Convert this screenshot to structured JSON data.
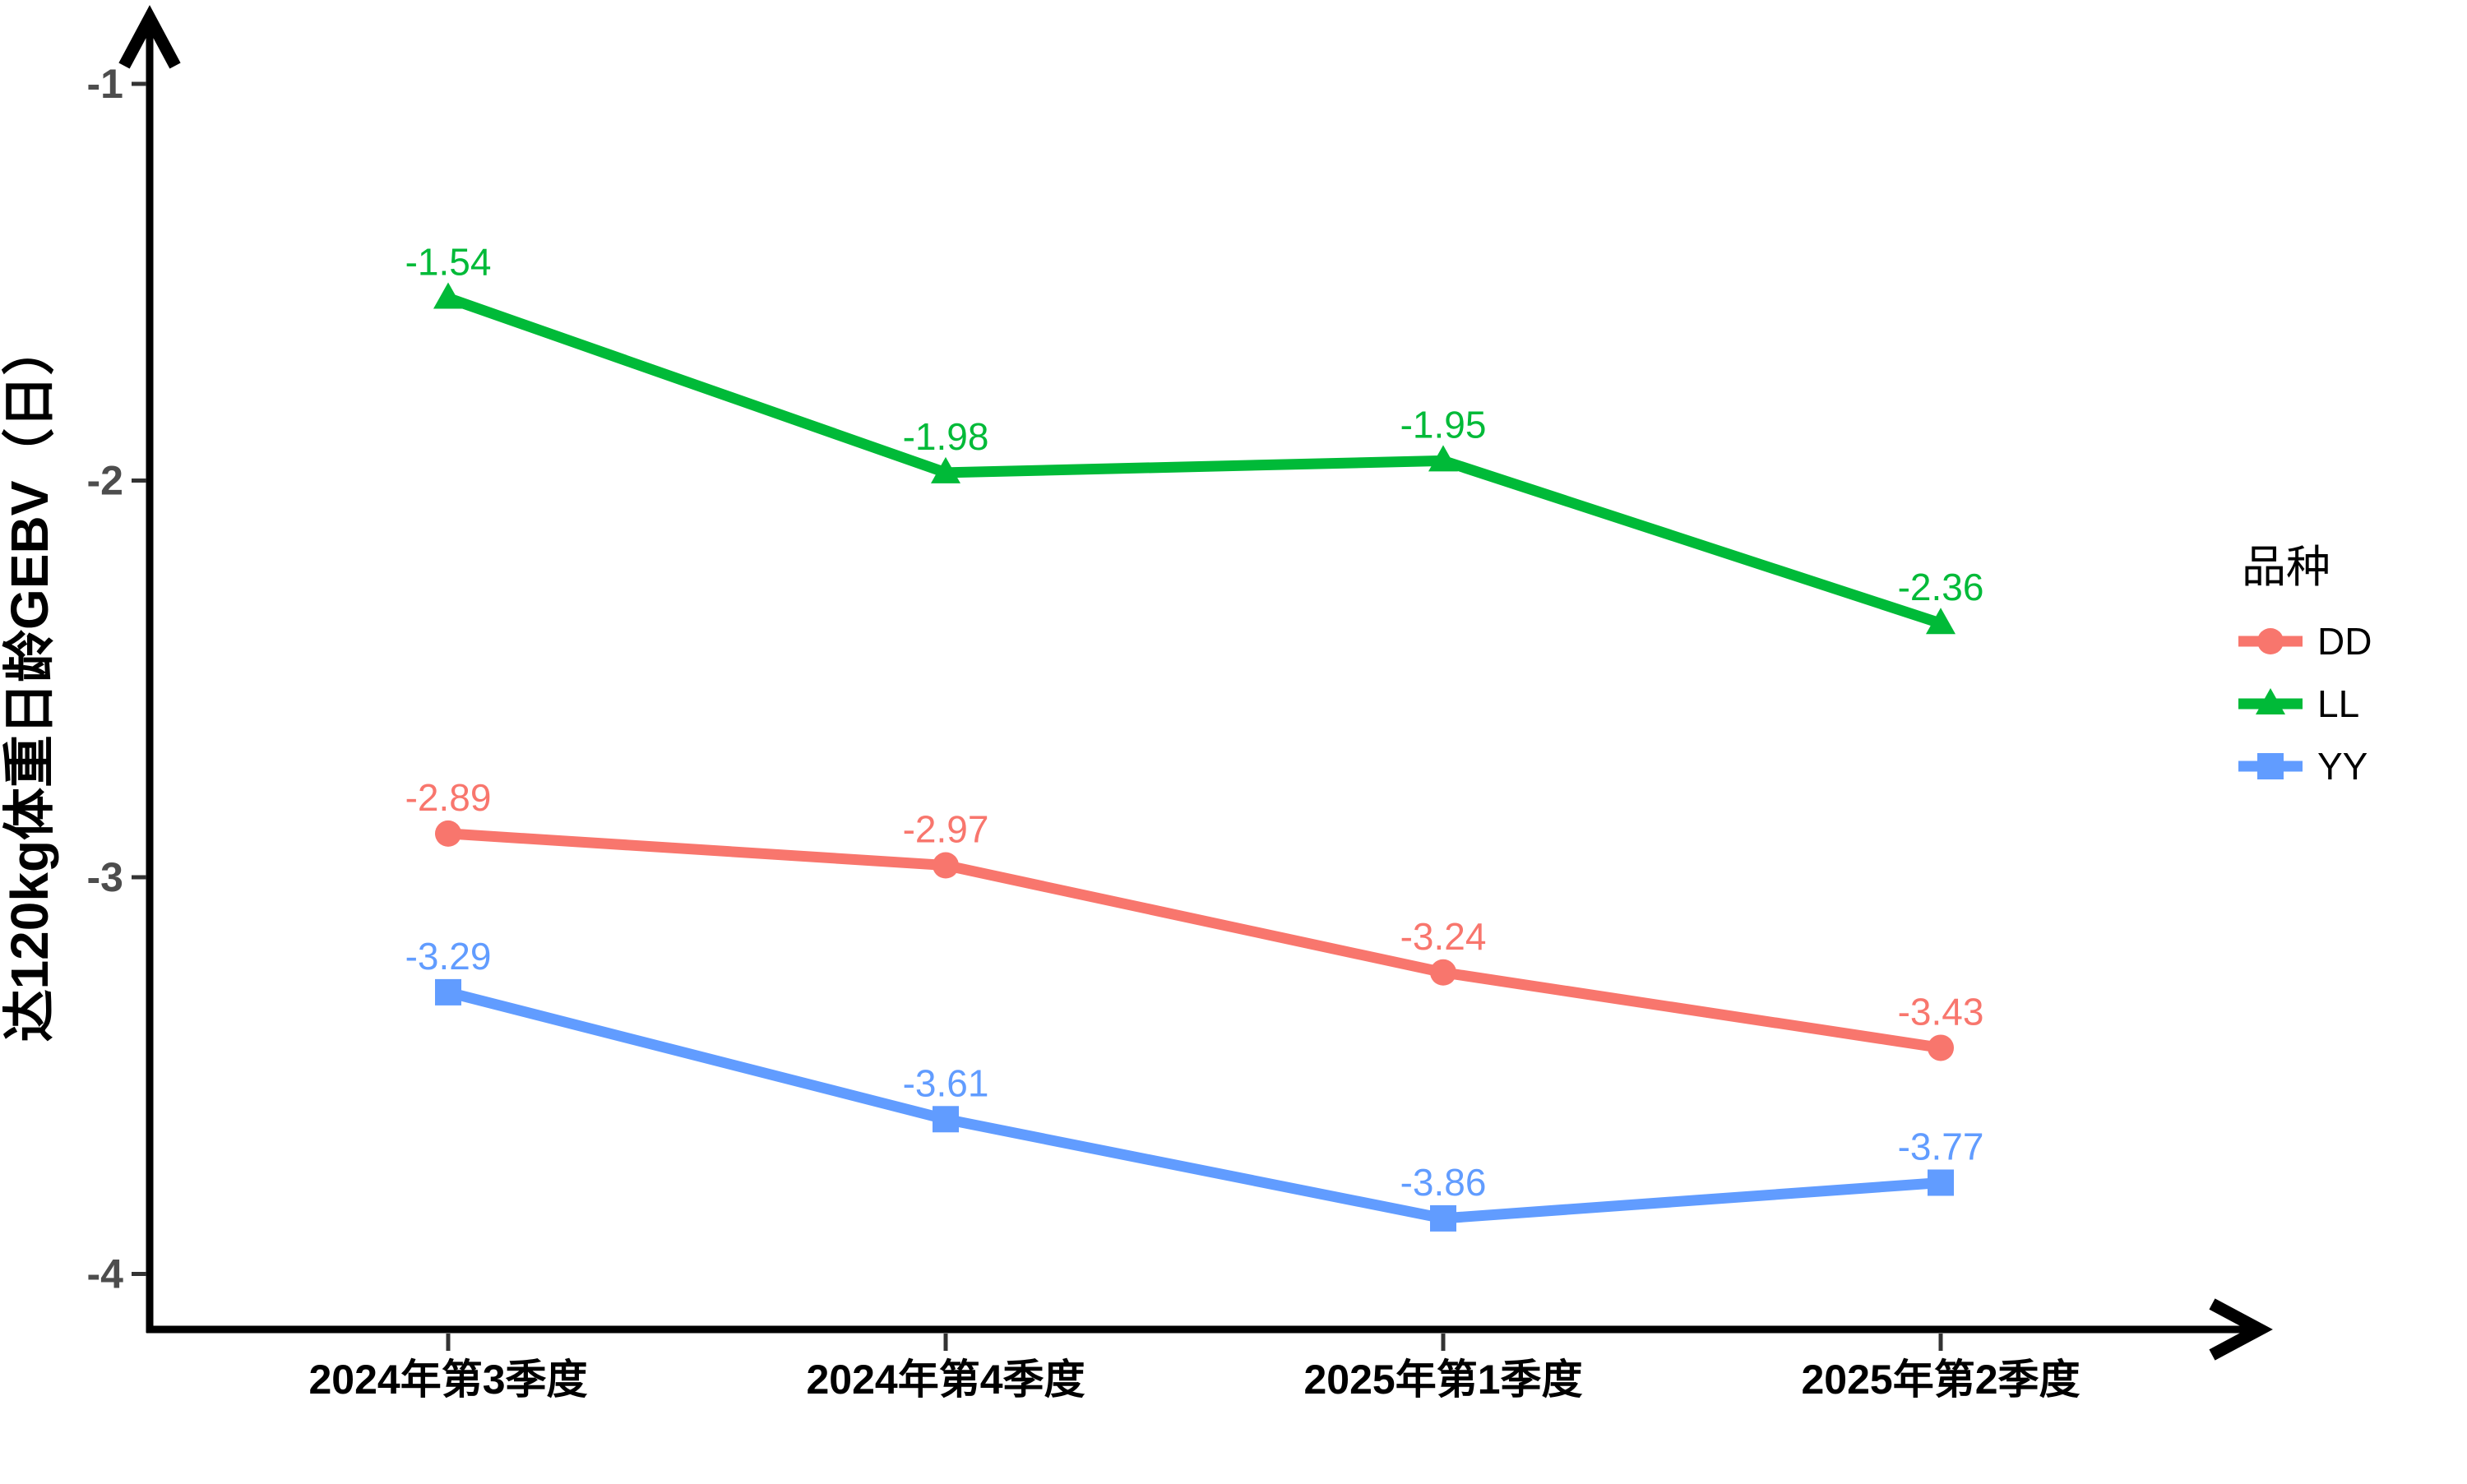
{
  "chart_data": {
    "type": "line",
    "categories": [
      "2024年第3季度",
      "2024年第4季度",
      "2025年第1季度",
      "2025年第2季度"
    ],
    "series": [
      {
        "name": "DD",
        "color": "#F8766D",
        "marker": "circle",
        "values": [
          -2.89,
          -2.97,
          -3.24,
          -3.43
        ],
        "labels": [
          "-2.89",
          "-2.97",
          "-3.24",
          "-3.43"
        ]
      },
      {
        "name": "LL",
        "color": "#00BA38",
        "marker": "triangle",
        "values": [
          -1.54,
          -1.98,
          -1.95,
          -2.36
        ],
        "labels": [
          "-1.54",
          "-1.98",
          "-1.95",
          "-2.36"
        ]
      },
      {
        "name": "YY",
        "color": "#619CFF",
        "marker": "square",
        "values": [
          -3.29,
          -3.61,
          -3.86,
          -3.77
        ],
        "labels": [
          "-3.29",
          "-3.61",
          "-3.86",
          "-3.77"
        ]
      }
    ],
    "title": "",
    "xlabel": "",
    "ylabel": "达120kg体重日龄GEBV（日）",
    "ylim": [
      -4.14,
      -0.83
    ],
    "yticks": [
      -1,
      -2,
      -3,
      -4
    ],
    "ytick_labels": [
      "-1",
      "-2",
      "-3",
      "-4"
    ],
    "grid": false,
    "data_labels": true,
    "legend": {
      "title": "品种",
      "position": "right",
      "entries": [
        "DD",
        "LL",
        "YY"
      ]
    }
  },
  "colors": {
    "axis": "#000000",
    "tick": "#333333",
    "y_tick_label": "#4d4d4d",
    "x_tick_label": "#000000",
    "background": "#ffffff"
  }
}
